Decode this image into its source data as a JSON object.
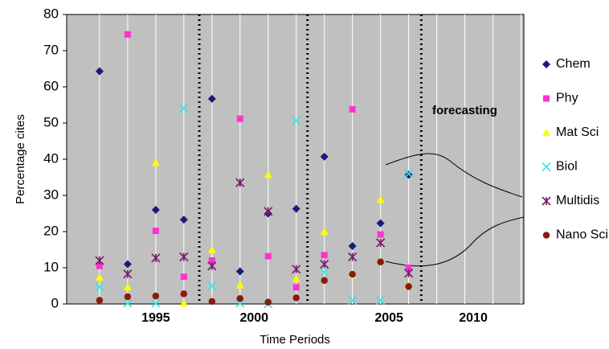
{
  "chart_data": {
    "type": "scatter",
    "y_label": "Percentage cites",
    "x_label": "Time Periods",
    "annotation": "forecasting",
    "x": [
      0,
      1,
      2,
      3,
      4,
      5,
      6,
      7,
      8,
      9,
      10,
      11,
      12,
      13,
      14,
      15
    ],
    "xlim": [
      -1.17,
      15.1
    ],
    "xticks": [
      {
        "value": 2,
        "label": "1995"
      },
      {
        "value": 5.5,
        "label": "2000"
      },
      {
        "value": 10.3,
        "label": "2005"
      },
      {
        "value": 13.3,
        "label": "2010"
      }
    ],
    "dividers": [
      3.55,
      7.4,
      11.45
    ],
    "ylim": [
      0,
      80
    ],
    "yticks": [
      0,
      10,
      20,
      30,
      40,
      50,
      60,
      70,
      80
    ],
    "series": [
      {
        "name": "Chem",
        "color": "#1a1a7a",
        "marker": "diamond",
        "values": [
          64.3,
          11,
          26,
          23.3,
          56.7,
          9,
          25,
          26.3,
          40.7,
          16,
          22.3,
          35.7,
          null,
          null,
          null,
          null
        ]
      },
      {
        "name": "Phy",
        "color": "#ff33cc",
        "marker": "square",
        "values": [
          10.5,
          74.5,
          20.2,
          7.5,
          12,
          51.2,
          13.2,
          4.6,
          13.5,
          53.8,
          19.2,
          10,
          null,
          null,
          null,
          null
        ]
      },
      {
        "name": "Mat Sci",
        "color": "#ffff00",
        "marker": "triangle",
        "values": [
          7.3,
          4.6,
          39,
          0.2,
          15,
          5.2,
          35.7,
          7,
          20,
          8,
          28.8,
          5,
          null,
          null,
          null,
          null
        ]
      },
      {
        "name": "Biol",
        "color": "#33e6e6",
        "marker": "cross",
        "values": [
          4.7,
          0.2,
          0.2,
          54,
          5,
          0.2,
          0,
          50.7,
          8.8,
          1,
          1,
          36,
          null,
          null,
          null,
          null
        ]
      },
      {
        "name": "Multidis",
        "color": "#7a1a6a",
        "marker": "star",
        "values": [
          12,
          8.3,
          12.7,
          13,
          10.5,
          33.5,
          25.6,
          9.6,
          11,
          13,
          16.9,
          8.5,
          null,
          null,
          null,
          null
        ]
      },
      {
        "name": "Nano Sci",
        "color": "#8b1a0a",
        "marker": "circle",
        "values": [
          1,
          2,
          2.2,
          2.8,
          0.7,
          1.5,
          0.5,
          1.7,
          6.5,
          8.2,
          11.6,
          4.8,
          null,
          null,
          null,
          null
        ]
      }
    ]
  }
}
